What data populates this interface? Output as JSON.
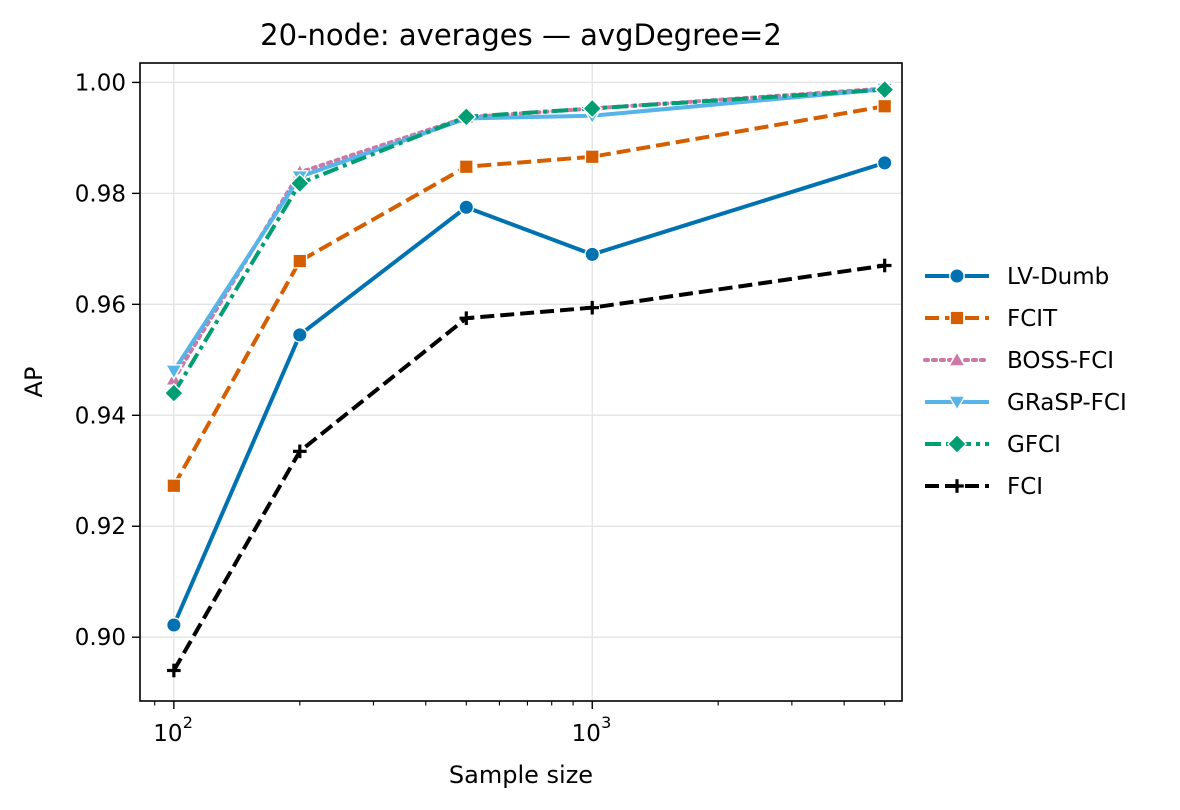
{
  "chart_data": {
    "type": "line",
    "title": "20-node: averages — avgDegree=2",
    "xlabel": "Sample size",
    "ylabel": "AP",
    "xscale": "log",
    "xlim": [
      83,
      5500
    ],
    "ylim": [
      0.8885,
      1.0035
    ],
    "grid": true,
    "legend_position": "right",
    "x": [
      100,
      200,
      500,
      1000,
      5000
    ],
    "x_ticks": [
      {
        "value": 100,
        "base": "10",
        "exp": "2"
      },
      {
        "value": 1000,
        "base": "10",
        "exp": "3"
      }
    ],
    "y_ticks": [
      {
        "value": 0.9,
        "label": "0.90"
      },
      {
        "value": 0.92,
        "label": "0.92"
      },
      {
        "value": 0.94,
        "label": "0.94"
      },
      {
        "value": 0.96,
        "label": "0.96"
      },
      {
        "value": 0.98,
        "label": "0.98"
      },
      {
        "value": 1.0,
        "label": "1.00"
      }
    ],
    "series": [
      {
        "name": "LV-Dumb",
        "color": "#0072B2",
        "dash": "solid",
        "marker": "circle",
        "values": [
          0.9022,
          0.9545,
          0.9775,
          0.969,
          0.9855
        ]
      },
      {
        "name": "FCIT",
        "color": "#D55E00",
        "dash": "dashed",
        "marker": "square",
        "values": [
          0.9273,
          0.9678,
          0.9848,
          0.9866,
          0.9957
        ]
      },
      {
        "name": "BOSS-FCI",
        "color": "#CC79A7",
        "dash": "dotted",
        "marker": "triangle-up",
        "values": [
          0.9465,
          0.9838,
          0.9937,
          0.9953,
          0.9989
        ]
      },
      {
        "name": "GRaSP-FCI",
        "color": "#56B4E9",
        "dash": "solid",
        "marker": "triangle-down",
        "values": [
          0.948,
          0.983,
          0.9935,
          0.994,
          0.9988
        ]
      },
      {
        "name": "GFCI",
        "color": "#009E73",
        "dash": "dashdot",
        "marker": "diamond",
        "values": [
          0.944,
          0.9818,
          0.9938,
          0.9953,
          0.9987
        ]
      },
      {
        "name": "FCI",
        "color": "#000000",
        "dash": "dashed",
        "marker": "plus",
        "values": [
          0.894,
          0.9335,
          0.9575,
          0.9594,
          0.967
        ]
      }
    ]
  }
}
